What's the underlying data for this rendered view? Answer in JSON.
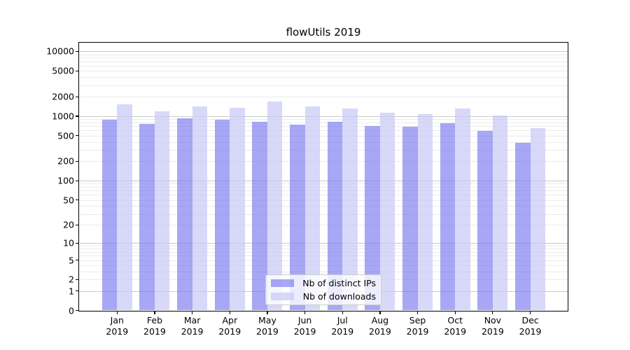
{
  "page": {
    "background": "#ffffff"
  },
  "chart_data": {
    "type": "bar",
    "title": "flowUtils 2019",
    "categories": [
      "Jan",
      "Feb",
      "Mar",
      "Apr",
      "May",
      "Jun",
      "Jul",
      "Aug",
      "Sep",
      "Oct",
      "Nov",
      "Dec"
    ],
    "category_year": "2019",
    "series": [
      {
        "name": "Nb of distinct IPs",
        "color": "#7878F0",
        "alpha": 0.65,
        "values": [
          880,
          760,
          930,
          880,
          820,
          750,
          820,
          705,
          680,
          770,
          585,
          390
        ]
      },
      {
        "name": "Nb of downloads",
        "color": "#C8C8F5",
        "alpha": 0.7,
        "values": [
          1520,
          1190,
          1420,
          1350,
          1680,
          1410,
          1320,
          1120,
          1090,
          1300,
          1020,
          660
        ]
      }
    ],
    "xlabel": "",
    "ylabel": "",
    "yscale": "log1p",
    "ylim": [
      0,
      13600
    ],
    "y_ticks": [
      0,
      1,
      2,
      5,
      10,
      20,
      50,
      100,
      200,
      500,
      1000,
      2000,
      5000,
      10000
    ],
    "grid": true,
    "grid_major_color": "#c9c9c9",
    "grid_minor_color": "#ebebeb",
    "axis_color": "#000000",
    "legend": {
      "position": "lower center",
      "entries": [
        "Nb of distinct IPs",
        "Nb of downloads"
      ]
    }
  }
}
